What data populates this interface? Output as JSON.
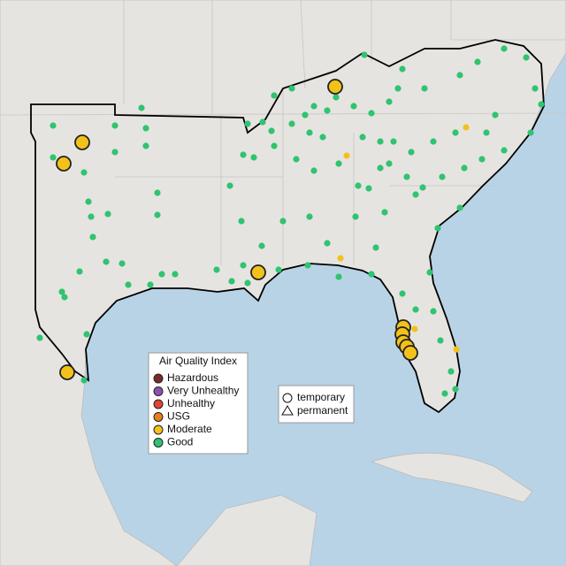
{
  "legend": {
    "title": "Air Quality Index",
    "items": [
      {
        "label": "Hazardous",
        "color": "#7e2a2a"
      },
      {
        "label": "Very Unhealthy",
        "color": "#8f4fb0"
      },
      {
        "label": "Unhealthy",
        "color": "#e0452f"
      },
      {
        "label": "USG",
        "color": "#e6801f"
      },
      {
        "label": "Moderate",
        "color": "#f2c21a"
      },
      {
        "label": "Good",
        "color": "#2fc46f"
      }
    ]
  },
  "shape_legend": {
    "items": [
      "temporary",
      "permanent"
    ]
  }
}
